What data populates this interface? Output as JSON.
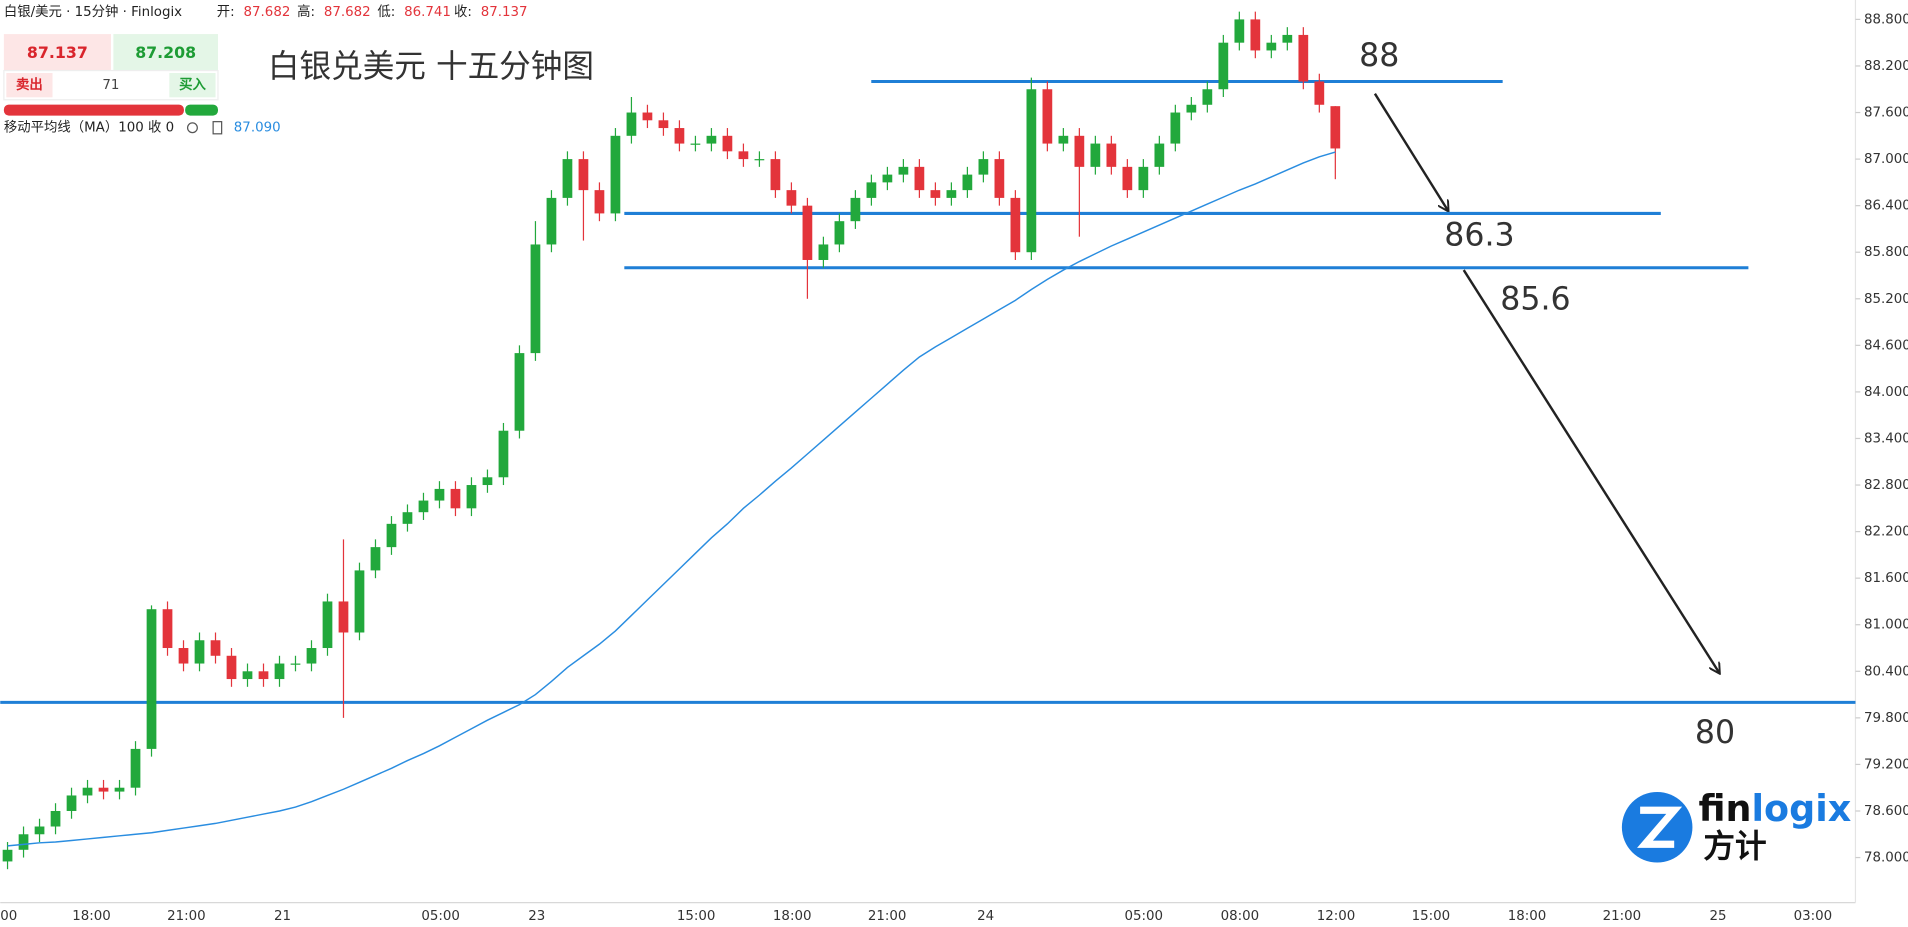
{
  "header": {
    "symbol": "白银/美元 · 15分钟 · Finlogix",
    "open_label": "开:",
    "open": "87.682",
    "high_label": "高:",
    "high": "87.682",
    "low_label": "低:",
    "low": "86.741",
    "close_label": "收:",
    "close": "87.137"
  },
  "trade_panel": {
    "sell_price": "87.137",
    "buy_price": "87.208",
    "sell": "卖出",
    "spread": "71",
    "buy": "买入"
  },
  "indicator": {
    "name": "移动平均线（MA）100 收 0",
    "value": "87.090"
  },
  "logo": {
    "prefix": "fin",
    "suffix": "logix",
    "cn": "方计"
  },
  "chart_data": {
    "type": "candlestick",
    "title": "白银兑美元 十五分钟图",
    "up_color": "#22a83c",
    "down_color": "#e3343b",
    "open": [
      77.95,
      78.1,
      78.3,
      78.4,
      78.6,
      78.8,
      78.9,
      78.85,
      78.9,
      79.4,
      81.2,
      80.7,
      80.5,
      80.8,
      80.6,
      80.3,
      80.4,
      80.3,
      80.5,
      80.5,
      80.7,
      81.3,
      80.9,
      81.7,
      82.0,
      82.3,
      82.45,
      82.6,
      82.75,
      82.5,
      82.8,
      82.9,
      83.5,
      84.5,
      85.9,
      86.5,
      87.0,
      86.6,
      86.3,
      87.3,
      87.6,
      87.5,
      87.4,
      87.2,
      87.2,
      87.3,
      87.1,
      87.0,
      87.0,
      86.6,
      86.4,
      85.7,
      85.9,
      86.2,
      86.5,
      86.7,
      86.8,
      86.9,
      86.6,
      86.5,
      86.6,
      86.8,
      87.0,
      86.5,
      85.8,
      87.9,
      87.2,
      87.3,
      86.9,
      87.2,
      86.9,
      86.6,
      86.9,
      87.2,
      87.6,
      87.7,
      87.9,
      88.5,
      88.8,
      88.4,
      88.5,
      88.6,
      88.0,
      87.682
    ],
    "high": [
      78.2,
      78.4,
      78.5,
      78.7,
      78.9,
      79.0,
      79.0,
      79.0,
      79.5,
      81.25,
      81.3,
      80.8,
      80.9,
      80.9,
      80.7,
      80.5,
      80.5,
      80.6,
      80.6,
      80.8,
      81.4,
      82.1,
      81.8,
      82.1,
      82.4,
      82.55,
      82.7,
      82.85,
      82.85,
      82.9,
      83.0,
      83.6,
      84.6,
      86.2,
      86.6,
      87.1,
      87.1,
      86.7,
      87.4,
      87.8,
      87.7,
      87.6,
      87.5,
      87.3,
      87.4,
      87.4,
      87.2,
      87.1,
      87.1,
      86.7,
      86.5,
      86.0,
      86.3,
      86.6,
      86.8,
      86.9,
      87.0,
      87.0,
      86.7,
      86.7,
      86.9,
      87.1,
      87.1,
      86.6,
      88.05,
      88.0,
      87.4,
      87.4,
      87.3,
      87.3,
      87.0,
      87.0,
      87.3,
      87.7,
      87.8,
      88.0,
      88.6,
      88.9,
      88.9,
      88.6,
      88.7,
      88.7,
      88.1,
      87.682
    ],
    "low": [
      77.85,
      78.0,
      78.2,
      78.3,
      78.5,
      78.7,
      78.75,
      78.75,
      78.8,
      79.3,
      80.6,
      80.4,
      80.4,
      80.5,
      80.2,
      80.2,
      80.2,
      80.2,
      80.4,
      80.4,
      80.6,
      79.8,
      80.8,
      81.6,
      81.9,
      82.2,
      82.35,
      82.5,
      82.4,
      82.4,
      82.7,
      82.8,
      83.4,
      84.4,
      85.8,
      86.4,
      85.95,
      86.2,
      86.2,
      87.2,
      87.4,
      87.3,
      87.1,
      87.1,
      87.1,
      87.0,
      86.9,
      86.9,
      86.5,
      86.3,
      85.2,
      85.6,
      85.8,
      86.1,
      86.4,
      86.6,
      86.7,
      86.5,
      86.4,
      86.4,
      86.5,
      86.7,
      86.4,
      85.7,
      85.7,
      87.1,
      87.1,
      86.0,
      86.8,
      86.8,
      86.5,
      86.5,
      86.8,
      87.1,
      87.5,
      87.6,
      87.8,
      88.4,
      88.3,
      88.3,
      88.4,
      87.9,
      87.6,
      86.741
    ],
    "close": [
      78.1,
      78.3,
      78.4,
      78.6,
      78.8,
      78.9,
      78.85,
      78.9,
      79.4,
      81.2,
      80.7,
      80.5,
      80.8,
      80.6,
      80.3,
      80.4,
      80.3,
      80.5,
      80.5,
      80.7,
      81.3,
      80.9,
      81.7,
      82.0,
      82.3,
      82.45,
      82.6,
      82.75,
      82.5,
      82.8,
      82.9,
      83.5,
      84.5,
      85.9,
      86.5,
      87.0,
      86.6,
      86.3,
      87.3,
      87.6,
      87.5,
      87.4,
      87.2,
      87.2,
      87.3,
      87.1,
      87.0,
      87.0,
      86.6,
      86.4,
      85.7,
      85.9,
      86.2,
      86.5,
      86.7,
      86.8,
      86.9,
      86.6,
      86.5,
      86.6,
      86.8,
      87.0,
      86.5,
      85.8,
      87.9,
      87.2,
      87.3,
      86.9,
      87.2,
      86.9,
      86.6,
      86.9,
      87.2,
      87.6,
      87.7,
      87.9,
      88.5,
      88.8,
      88.4,
      88.5,
      88.6,
      88.0,
      87.7,
      87.137
    ],
    "ma": {
      "color": "#2a8de0",
      "values": [
        78.15,
        78.17,
        78.19,
        78.2,
        78.22,
        78.24,
        78.26,
        78.28,
        78.3,
        78.32,
        78.35,
        78.38,
        78.41,
        78.44,
        78.48,
        78.52,
        78.56,
        78.6,
        78.65,
        78.72,
        78.8,
        78.88,
        78.97,
        79.06,
        79.15,
        79.25,
        79.34,
        79.44,
        79.55,
        79.66,
        79.77,
        79.87,
        79.97,
        80.1,
        80.27,
        80.45,
        80.6,
        80.75,
        80.92,
        81.12,
        81.32,
        81.52,
        81.72,
        81.92,
        82.12,
        82.3,
        82.5,
        82.67,
        82.85,
        83.02,
        83.2,
        83.38,
        83.56,
        83.74,
        83.92,
        84.1,
        84.28,
        84.45,
        84.58,
        84.7,
        84.82,
        84.94,
        85.06,
        85.18,
        85.32,
        85.45,
        85.57,
        85.68,
        85.78,
        85.88,
        85.97,
        86.06,
        86.15,
        86.24,
        86.33,
        86.42,
        86.51,
        86.6,
        86.68,
        86.77,
        86.86,
        86.95,
        87.03,
        87.09
      ]
    },
    "levels": [
      88,
      86.3,
      85.6,
      80
    ],
    "level_color": "#1f7fd6",
    "xtick_labels": [
      "00",
      "18:00",
      "21:00",
      "21",
      "05:00",
      "23",
      "15:00",
      "18:00",
      "21:00",
      "24",
      "05:00",
      "08:00",
      "12:00",
      "15:00",
      "18:00",
      "21:00",
      "25",
      "03:00"
    ],
    "ylim": [
      77.45,
      89.05
    ],
    "yticks": [
      {
        "value": 88.8,
        "label": "88.800"
      },
      {
        "value": 88.2,
        "label": "88.200"
      },
      {
        "value": 87.6,
        "label": "87.600"
      },
      {
        "value": 87.0,
        "label": "87.000"
      },
      {
        "value": 86.4,
        "label": "86.400"
      },
      {
        "value": 85.8,
        "label": "85.800"
      },
      {
        "value": 85.2,
        "label": "85.200"
      },
      {
        "value": 84.6,
        "label": "84.600"
      },
      {
        "value": 84.0,
        "label": "84.000"
      },
      {
        "value": 83.4,
        "label": "83.400"
      },
      {
        "value": 82.8,
        "label": "82.800"
      },
      {
        "value": 82.2,
        "label": "82.200"
      },
      {
        "value": 81.6,
        "label": "81.600"
      },
      {
        "value": 81.0,
        "label": "81.000"
      },
      {
        "value": 80.4,
        "label": "80.400"
      },
      {
        "value": 79.8,
        "label": "79.800"
      },
      {
        "value": 79.2,
        "label": "79.200"
      },
      {
        "value": 78.6,
        "label": "78.600"
      },
      {
        "value": 78.0,
        "label": "78.000"
      }
    ]
  }
}
